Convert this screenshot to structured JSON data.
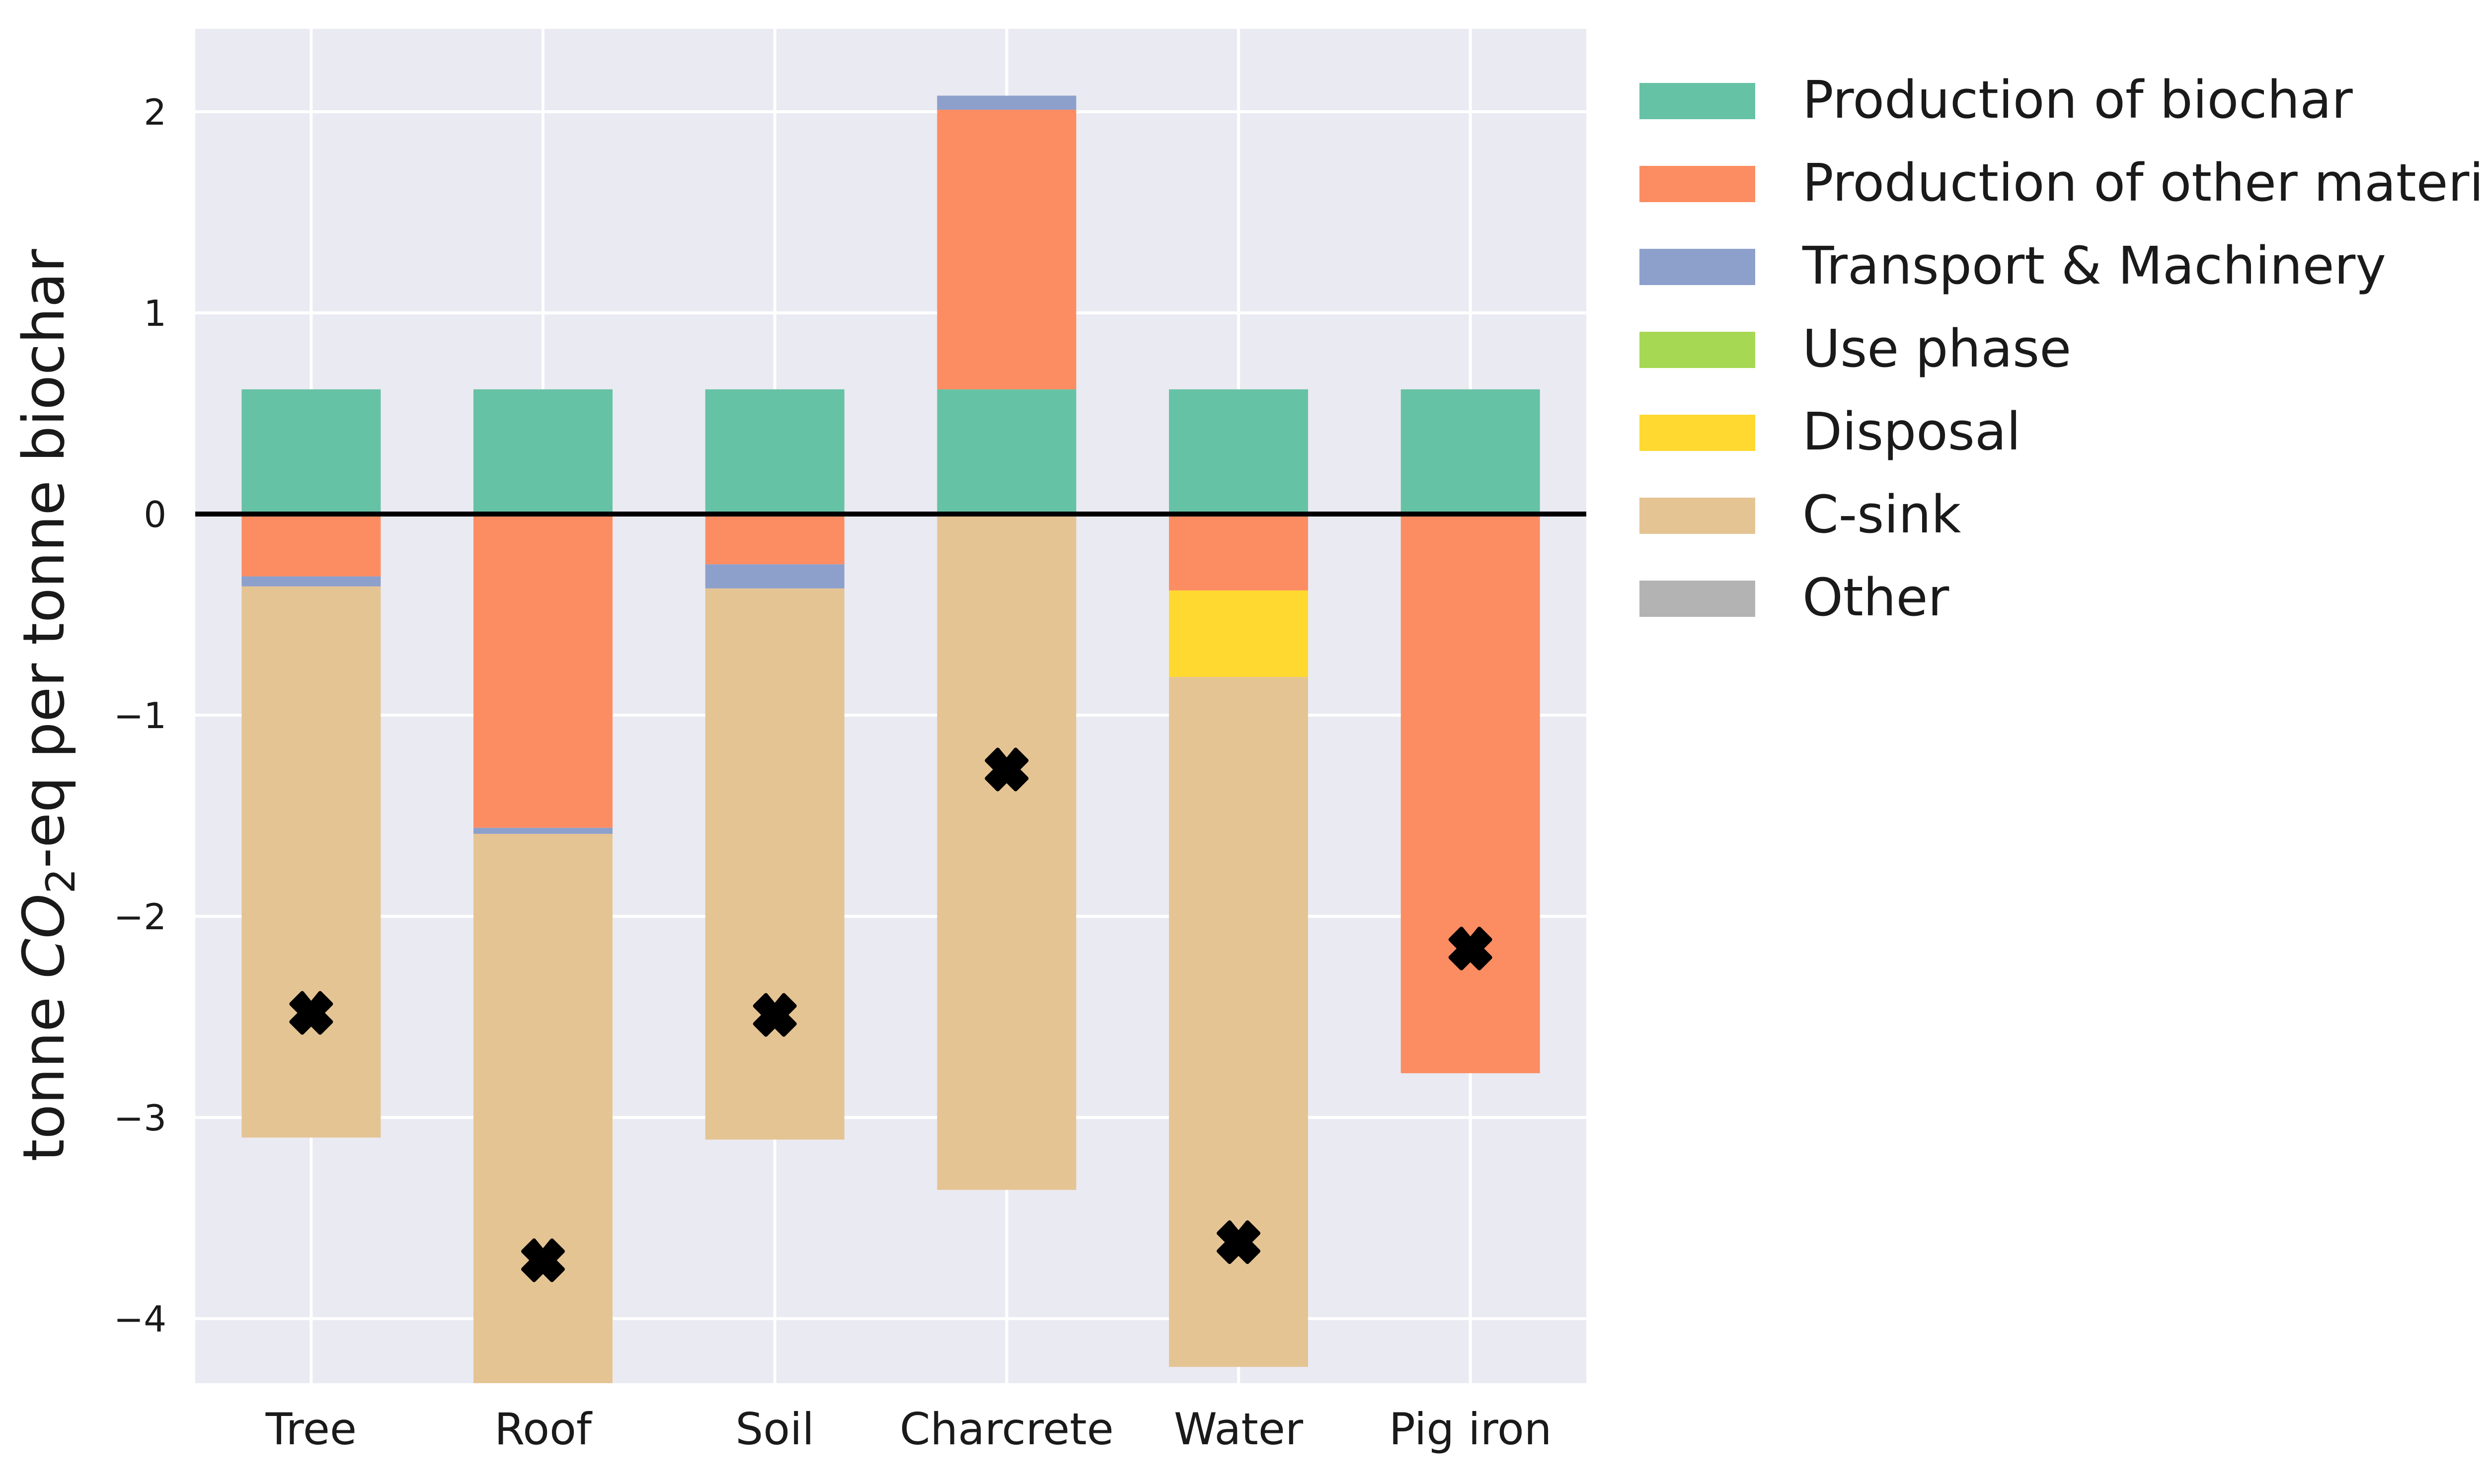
{
  "chart_data": {
    "type": "bar",
    "stacked": true,
    "categories": [
      "Tree",
      "Roof",
      "Soil",
      "Charcrete",
      "Water",
      "Pig iron"
    ],
    "ylabel": "tonne CO2-eq per tonne biochar",
    "ylabel_parts": {
      "pre": "tonne ",
      "var": "CO",
      "sub": "2",
      "post": "-eq per tonne biochar"
    },
    "ylim": [
      -4.33,
      2.42
    ],
    "yticks": [
      2,
      1,
      0,
      -1,
      -2,
      -3,
      -4
    ],
    "ytick_labels": [
      "2",
      "1",
      "0",
      "−1",
      "−2",
      "−3",
      "−4"
    ],
    "grid": true,
    "legend_placement": "outside-right",
    "zero_line": true,
    "series": [
      {
        "name": "Production of biochar",
        "color": "#66c2a5",
        "values": [
          0.62,
          0.62,
          0.62,
          0.62,
          0.62,
          0.62
        ]
      },
      {
        "name": "Production of other materials",
        "color": "#fc8d62",
        "values": [
          -0.31,
          -1.56,
          -0.25,
          1.39,
          -0.38,
          -2.78
        ]
      },
      {
        "name": "Transport & Machinery",
        "color": "#8da0cb",
        "values": [
          -0.05,
          -0.03,
          -0.12,
          0.07,
          0,
          0
        ]
      },
      {
        "name": "Use phase",
        "color": "#a6d854",
        "values": [
          0,
          0,
          0,
          0,
          0,
          0
        ]
      },
      {
        "name": "Disposal",
        "color": "#ffd92f",
        "values": [
          0,
          0,
          0,
          0,
          -0.43,
          0
        ]
      },
      {
        "name": "C-sink",
        "color": "#e5c494",
        "values": [
          -2.74,
          -2.74,
          -2.74,
          -3.36,
          -3.43,
          0
        ]
      },
      {
        "name": "Other",
        "color": "#b3b3b3",
        "values": [
          0,
          0,
          0,
          0,
          0,
          0
        ]
      }
    ],
    "net_totals": [
      -2.48,
      -3.71,
      -2.49,
      -1.27,
      -3.62,
      -2.16
    ],
    "net_marker": "x-filled"
  }
}
